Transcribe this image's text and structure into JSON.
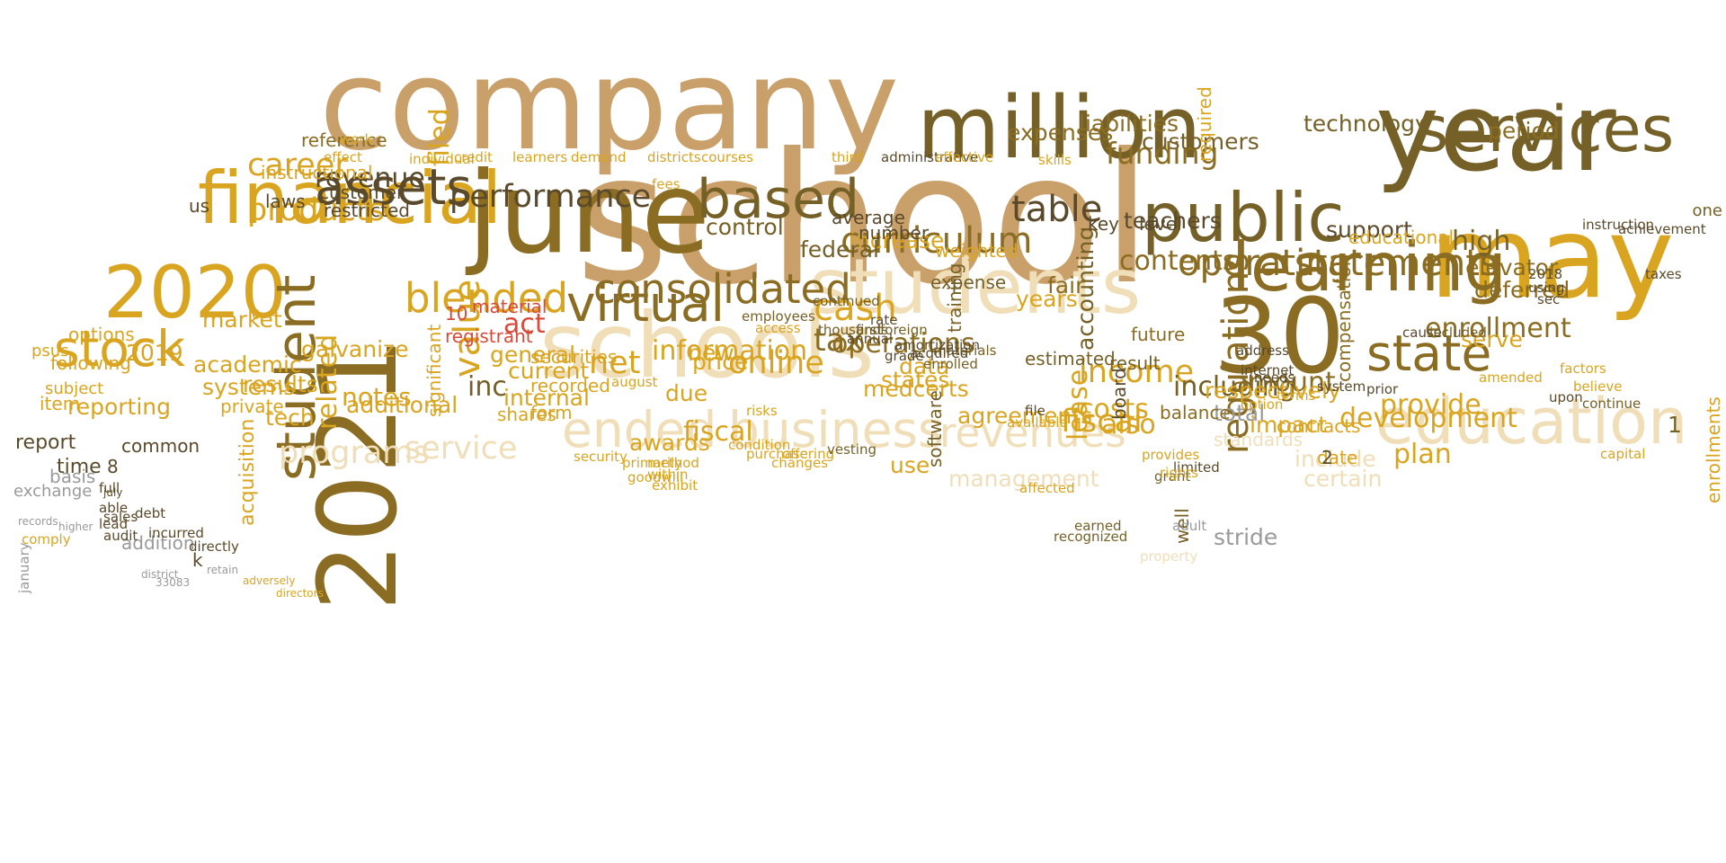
{
  "palette": {
    "gold": "#d9a520",
    "dark_gold": "#8a6d22",
    "tan": "#c9a06a",
    "pale": "#f0deb8",
    "olive": "#756127",
    "brown": "#5a4a2b",
    "gray": "#9a9a9a",
    "red": "#d84a3a"
  },
  "words": [
    {
      "text": "school",
      "color": "tan"
    },
    {
      "text": "company",
      "color": "tan"
    },
    {
      "text": "june",
      "color": "dark_gold"
    },
    {
      "text": "year",
      "color": "olive"
    },
    {
      "text": "million",
      "color": "olive"
    },
    {
      "text": "schools",
      "color": "pale"
    },
    {
      "text": "students",
      "color": "pale"
    },
    {
      "text": "may",
      "color": "gold"
    },
    {
      "text": "30",
      "color": "dark_gold"
    },
    {
      "text": "2021",
      "color": "dark_gold"
    },
    {
      "text": "2020",
      "color": "gold"
    },
    {
      "text": "financial",
      "color": "gold"
    },
    {
      "text": "public",
      "color": "olive"
    },
    {
      "text": "services",
      "color": "olive"
    },
    {
      "text": "education",
      "color": "pale"
    },
    {
      "text": "learning",
      "color": "dark_gold"
    },
    {
      "text": "student",
      "color": "dark_gold"
    },
    {
      "text": "based",
      "color": "olive"
    },
    {
      "text": "assets",
      "color": "brown"
    },
    {
      "text": "stock",
      "color": "gold"
    },
    {
      "text": "virtual",
      "color": "dark_gold"
    },
    {
      "text": "consolidated",
      "color": "dark_gold"
    },
    {
      "text": "curriculum",
      "color": "dark_gold"
    },
    {
      "text": "blended",
      "color": "gold"
    },
    {
      "text": "ended",
      "color": "pale"
    },
    {
      "text": "business",
      "color": "pale"
    },
    {
      "text": "revenues",
      "color": "pale"
    },
    {
      "text": "state",
      "color": "dark_gold"
    },
    {
      "text": "statements",
      "color": "dark_gold"
    },
    {
      "text": "operating",
      "color": "dark_gold"
    },
    {
      "text": "table",
      "color": "brown"
    },
    {
      "text": "performance",
      "color": "brown"
    },
    {
      "text": "products",
      "color": "gold"
    },
    {
      "text": "career",
      "color": "gold"
    },
    {
      "text": "revenue",
      "color": "brown"
    },
    {
      "text": "funding",
      "color": "dark_gold"
    },
    {
      "text": "cash",
      "color": "gold"
    },
    {
      "text": "net",
      "color": "gold"
    },
    {
      "text": "online",
      "color": "gold"
    },
    {
      "text": "income",
      "color": "gold"
    },
    {
      "text": "tax",
      "color": "dark_gold"
    },
    {
      "text": "fiscal",
      "color": "gold"
    },
    {
      "text": "enrollment",
      "color": "dark_gold"
    },
    {
      "text": "contents",
      "color": "dark_gold"
    },
    {
      "text": "operations",
      "color": "dark_gold"
    },
    {
      "text": "information",
      "color": "gold"
    },
    {
      "text": "service",
      "color": "pale"
    },
    {
      "text": "programs",
      "color": "pale"
    },
    {
      "text": "results",
      "color": "gold"
    },
    {
      "text": "market",
      "color": "gold"
    },
    {
      "text": "academic",
      "color": "gold"
    },
    {
      "text": "systems",
      "color": "gold"
    },
    {
      "text": "reporting",
      "color": "gold"
    },
    {
      "text": "costs",
      "color": "gold"
    },
    {
      "text": "including",
      "color": "olive"
    },
    {
      "text": "also",
      "color": "gold"
    },
    {
      "text": "amount",
      "color": "dark_gold"
    },
    {
      "text": "provide",
      "color": "gold"
    },
    {
      "text": "development",
      "color": "gold"
    },
    {
      "text": "plan",
      "color": "gold"
    },
    {
      "text": "serve",
      "color": "gold"
    },
    {
      "text": "elevator",
      "color": "dark_gold"
    },
    {
      "text": "deferred",
      "color": "dark_gold"
    },
    {
      "text": "high",
      "color": "olive"
    },
    {
      "text": "technology",
      "color": "olive"
    },
    {
      "text": "period",
      "color": "dark_gold"
    },
    {
      "text": "customers",
      "color": "olive"
    },
    {
      "text": "liabilities",
      "color": "dark_gold"
    },
    {
      "text": "expenses",
      "color": "dark_gold"
    },
    {
      "text": "control",
      "color": "olive"
    },
    {
      "text": "increase",
      "color": "gold"
    },
    {
      "text": "accounting",
      "color": "olive"
    },
    {
      "text": "federal",
      "color": "olive"
    },
    {
      "text": "lease",
      "color": "gold"
    },
    {
      "text": "medcerts",
      "color": "gold"
    },
    {
      "text": "agreements",
      "color": "gold"
    },
    {
      "text": "management",
      "color": "pale"
    },
    {
      "text": "use",
      "color": "gold"
    },
    {
      "text": "states",
      "color": "gold"
    },
    {
      "text": "data",
      "color": "gold"
    },
    {
      "text": "new",
      "color": "gold"
    },
    {
      "text": "price",
      "color": "gold"
    },
    {
      "text": "due",
      "color": "gold"
    },
    {
      "text": "inc",
      "color": "olive"
    },
    {
      "text": "internal",
      "color": "gold"
    },
    {
      "text": "current",
      "color": "gold"
    },
    {
      "text": "general",
      "color": "gold"
    },
    {
      "text": "value",
      "color": "gold"
    },
    {
      "text": "related",
      "color": "gold"
    },
    {
      "text": "notes",
      "color": "gold"
    },
    {
      "text": "galvanize",
      "color": "gold"
    },
    {
      "text": "additional",
      "color": "gold"
    },
    {
      "text": "tech",
      "color": "gold"
    },
    {
      "text": "2019",
      "color": "gold"
    },
    {
      "text": "laws",
      "color": "brown"
    },
    {
      "text": "restricted",
      "color": "brown"
    },
    {
      "text": "customer",
      "color": "brown"
    },
    {
      "text": "instructional",
      "color": "gold"
    },
    {
      "text": "reference",
      "color": "dark_gold"
    },
    {
      "text": "filed",
      "color": "gold"
    },
    {
      "text": "support",
      "color": "brown"
    },
    {
      "text": "teachers",
      "color": "brown"
    },
    {
      "text": "years",
      "color": "gold"
    },
    {
      "text": "fair",
      "color": "dark_gold"
    },
    {
      "text": "regulations",
      "color": "dark_gold"
    },
    {
      "text": "total",
      "color": "gray"
    },
    {
      "text": "standards",
      "color": "pale"
    },
    {
      "text": "stride",
      "color": "gray"
    },
    {
      "text": "certain",
      "color": "pale"
    },
    {
      "text": "include",
      "color": "pale"
    },
    {
      "text": "respectively",
      "color": "gold"
    },
    {
      "text": "balance",
      "color": "dark_gold"
    },
    {
      "text": "contracts",
      "color": "gold"
    },
    {
      "text": "date",
      "color": "gold"
    },
    {
      "text": "weighted",
      "color": "gold"
    },
    {
      "text": "number",
      "color": "brown"
    },
    {
      "text": "average",
      "color": "brown"
    },
    {
      "text": "act",
      "color": "red"
    },
    {
      "text": "registrant",
      "color": "red"
    },
    {
      "text": "10",
      "color": "red"
    },
    {
      "text": "material",
      "color": "red"
    },
    {
      "text": "securities",
      "color": "gold"
    },
    {
      "text": "recorded",
      "color": "gold"
    },
    {
      "text": "form",
      "color": "gold"
    },
    {
      "text": "shares",
      "color": "gold"
    },
    {
      "text": "options",
      "color": "gold"
    },
    {
      "text": "following",
      "color": "gold"
    },
    {
      "text": "subject",
      "color": "gold"
    },
    {
      "text": "report",
      "color": "brown"
    },
    {
      "text": "time",
      "color": "brown"
    },
    {
      "text": "common",
      "color": "brown"
    },
    {
      "text": "basis",
      "color": "gray"
    },
    {
      "text": "exchange",
      "color": "gray"
    },
    {
      "text": "addition",
      "color": "gray"
    },
    {
      "text": "us",
      "color": "brown"
    },
    {
      "text": "8",
      "color": "brown"
    },
    {
      "text": "2",
      "color": "brown"
    },
    {
      "text": "k",
      "color": "brown"
    },
    {
      "text": "awards",
      "color": "gold"
    },
    {
      "text": "fiscal",
      "color": "gold"
    },
    {
      "text": "acquisition",
      "color": "gold"
    },
    {
      "text": "private",
      "color": "gold"
    },
    {
      "text": "significant",
      "color": "gold"
    },
    {
      "text": "enrollments",
      "color": "gold"
    },
    {
      "text": "1",
      "color": "olive"
    },
    {
      "text": "one",
      "color": "olive"
    },
    {
      "text": "impact",
      "color": "gold"
    },
    {
      "text": "compensation",
      "color": "dark_gold"
    },
    {
      "text": "educational",
      "color": "gold"
    },
    {
      "text": "required",
      "color": "gold"
    },
    {
      "text": "future",
      "color": "dark_gold"
    },
    {
      "text": "result",
      "color": "olive"
    },
    {
      "text": "estimated",
      "color": "olive"
    },
    {
      "text": "item",
      "color": "gold"
    },
    {
      "text": "psus",
      "color": "gold"
    },
    {
      "text": "0",
      "color": "gold"
    },
    {
      "text": "software",
      "color": "olive"
    },
    {
      "text": "training",
      "color": "olive"
    },
    {
      "text": "expense",
      "color": "olive"
    },
    {
      "text": "level",
      "color": "brown"
    },
    {
      "text": "board",
      "color": "brown"
    },
    {
      "text": "key",
      "color": "brown"
    },
    {
      "text": "well",
      "color": "olive"
    },
    {
      "text": "grant",
      "color": "olive"
    },
    {
      "text": "adult",
      "color": "gray"
    },
    {
      "text": "property",
      "color": "pale"
    },
    {
      "text": "full",
      "color": "brown"
    },
    {
      "text": "able",
      "color": "brown"
    },
    {
      "text": "lead",
      "color": "brown"
    },
    {
      "text": "audit",
      "color": "brown"
    },
    {
      "text": "sales",
      "color": "brown"
    },
    {
      "text": "debt",
      "color": "brown"
    },
    {
      "text": "incurred",
      "color": "brown"
    },
    {
      "text": "directly",
      "color": "brown"
    },
    {
      "text": "january",
      "color": "gray"
    },
    {
      "text": "district",
      "color": "gray"
    },
    {
      "text": "33083",
      "color": "gray"
    },
    {
      "text": "retain",
      "color": "gray"
    },
    {
      "text": "comply",
      "color": "gold"
    },
    {
      "text": "records",
      "color": "gray"
    },
    {
      "text": "july",
      "color": "brown"
    },
    {
      "text": "higher",
      "color": "gray"
    },
    {
      "text": "effect",
      "color": "gold"
    },
    {
      "text": "work",
      "color": "gold"
    },
    {
      "text": "individual",
      "color": "gold"
    },
    {
      "text": "credit",
      "color": "gold"
    },
    {
      "text": "learners",
      "color": "gold"
    },
    {
      "text": "demand",
      "color": "gold"
    },
    {
      "text": "districts",
      "color": "gold"
    },
    {
      "text": "courses",
      "color": "gold"
    },
    {
      "text": "fees",
      "color": "gold"
    },
    {
      "text": "administrative",
      "color": "brown"
    },
    {
      "text": "third",
      "color": "gold"
    },
    {
      "text": "effective",
      "color": "gold"
    },
    {
      "text": "skills",
      "color": "gold"
    },
    {
      "text": "instruction",
      "color": "brown"
    },
    {
      "text": "achievement",
      "color": "brown"
    },
    {
      "text": "2018",
      "color": "brown"
    },
    {
      "text": "taxes",
      "color": "brown"
    },
    {
      "text": "using",
      "color": "brown"
    },
    {
      "text": "sec",
      "color": "brown"
    },
    {
      "text": "cause",
      "color": "brown"
    },
    {
      "text": "included",
      "color": "olive"
    },
    {
      "text": "continue",
      "color": "olive"
    },
    {
      "text": "upon",
      "color": "brown"
    },
    {
      "text": "capital",
      "color": "gold"
    },
    {
      "text": "amended",
      "color": "gold"
    },
    {
      "text": "factors",
      "color": "gold"
    },
    {
      "text": "believe",
      "color": "gold"
    },
    {
      "text": "prior",
      "color": "brown"
    },
    {
      "text": "system",
      "color": "brown"
    },
    {
      "text": "terms",
      "color": "gold"
    },
    {
      "text": "option",
      "color": "gold"
    },
    {
      "text": "needs",
      "color": "brown"
    },
    {
      "text": "internet",
      "color": "brown"
    },
    {
      "text": "address",
      "color": "brown"
    },
    {
      "text": "limited",
      "color": "brown"
    },
    {
      "text": "provides",
      "color": "gold"
    },
    {
      "text": "rights",
      "color": "gold"
    },
    {
      "text": "affected",
      "color": "gold"
    },
    {
      "text": "recognized",
      "color": "olive"
    },
    {
      "text": "earned",
      "color": "olive"
    },
    {
      "text": "available",
      "color": "gold"
    },
    {
      "text": "file",
      "color": "brown"
    },
    {
      "text": "enrolled",
      "color": "olive"
    },
    {
      "text": "materials",
      "color": "olive"
    },
    {
      "text": "acquired",
      "color": "brown"
    },
    {
      "text": "annual",
      "color": "brown"
    },
    {
      "text": "first",
      "color": "brown"
    },
    {
      "text": "amortization",
      "color": "brown"
    },
    {
      "text": "rate",
      "color": "brown"
    },
    {
      "text": "grade",
      "color": "brown"
    },
    {
      "text": "foreign",
      "color": "olive"
    },
    {
      "text": "continued",
      "color": "olive"
    },
    {
      "text": "thousands",
      "color": "olive"
    },
    {
      "text": "employees",
      "color": "olive"
    },
    {
      "text": "access",
      "color": "gold"
    },
    {
      "text": "condition",
      "color": "gold"
    },
    {
      "text": "purchase",
      "color": "gold"
    },
    {
      "text": "offering",
      "color": "gold"
    },
    {
      "text": "vesting",
      "color": "olive"
    },
    {
      "text": "changes",
      "color": "gold"
    },
    {
      "text": "risks",
      "color": "gold"
    },
    {
      "text": "exhibit",
      "color": "gold"
    },
    {
      "text": "security",
      "color": "gold"
    },
    {
      "text": "august",
      "color": "gold"
    },
    {
      "text": "primarily",
      "color": "gold"
    },
    {
      "text": "goodwill",
      "color": "gold"
    },
    {
      "text": "method",
      "color": "gold"
    },
    {
      "text": "within",
      "color": "gold"
    },
    {
      "text": "adversely",
      "color": "gold"
    },
    {
      "text": "directors",
      "color": "gold"
    }
  ]
}
